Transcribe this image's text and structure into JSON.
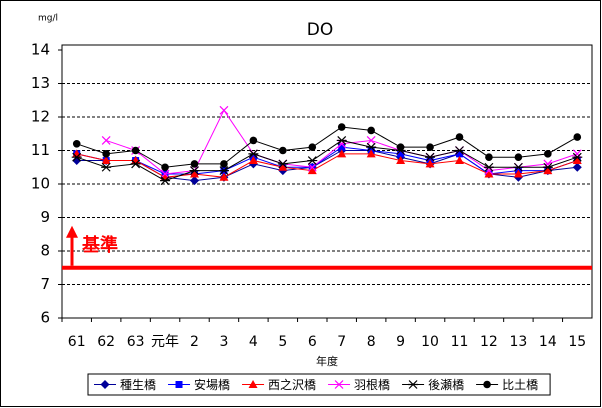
{
  "chart_data": {
    "type": "line",
    "title": "DO",
    "unit": "mg/l",
    "x_label": "年度",
    "categories": [
      "61",
      "62",
      "63",
      "元年",
      "2",
      "3",
      "4",
      "5",
      "6",
      "7",
      "8",
      "9",
      "10",
      "11",
      "12",
      "13",
      "14",
      "15"
    ],
    "series": [
      {
        "name": "種生橋",
        "color": "#000099",
        "marker": "diamond",
        "values": [
          10.7,
          10.7,
          10.7,
          10.2,
          10.1,
          10.2,
          10.6,
          10.4,
          10.5,
          11.0,
          11.0,
          10.8,
          10.6,
          10.9,
          10.3,
          10.2,
          10.4,
          10.5
        ]
      },
      {
        "name": "安場橋",
        "color": "#0000ff",
        "marker": "square",
        "values": [
          10.9,
          10.7,
          10.7,
          10.3,
          10.3,
          10.4,
          10.8,
          10.5,
          10.5,
          11.1,
          11.0,
          10.9,
          10.7,
          10.9,
          10.3,
          10.4,
          10.4,
          10.7
        ]
      },
      {
        "name": "西之沢橋",
        "color": "#ff0000",
        "marker": "triangle",
        "values": [
          10.9,
          10.7,
          10.7,
          10.2,
          10.3,
          10.2,
          10.7,
          10.5,
          10.4,
          10.9,
          10.9,
          10.7,
          10.6,
          10.7,
          10.3,
          10.3,
          10.4,
          10.7
        ]
      },
      {
        "name": "羽根橋",
        "color": "#ff00ff",
        "marker": "x",
        "values": [
          null,
          11.3,
          11.0,
          10.3,
          10.4,
          12.2,
          10.9,
          10.6,
          10.5,
          11.2,
          11.3,
          11.0,
          10.8,
          11.0,
          10.4,
          10.5,
          10.6,
          10.9
        ]
      },
      {
        "name": "後瀬橋",
        "color": "#000000",
        "marker": "asterisk",
        "values": [
          10.8,
          10.5,
          10.6,
          10.1,
          10.4,
          10.4,
          10.9,
          10.6,
          10.7,
          11.3,
          11.1,
          11.0,
          10.8,
          11.0,
          10.5,
          10.5,
          10.5,
          10.8
        ]
      },
      {
        "name": "比土橋",
        "color": "#000000",
        "marker": "circle",
        "values": [
          11.2,
          10.9,
          11.0,
          10.5,
          10.6,
          10.6,
          11.3,
          11.0,
          11.1,
          11.7,
          11.6,
          11.1,
          11.1,
          11.4,
          10.8,
          10.8,
          10.9,
          11.4
        ]
      }
    ],
    "standard": {
      "label": "基準",
      "value": 7.5,
      "color": "#ff0000"
    },
    "ylim": [
      6,
      14
    ],
    "yticks": [
      6,
      7,
      8,
      9,
      10,
      11,
      12,
      13,
      14
    ],
    "grid": true,
    "legend": "bottom"
  }
}
